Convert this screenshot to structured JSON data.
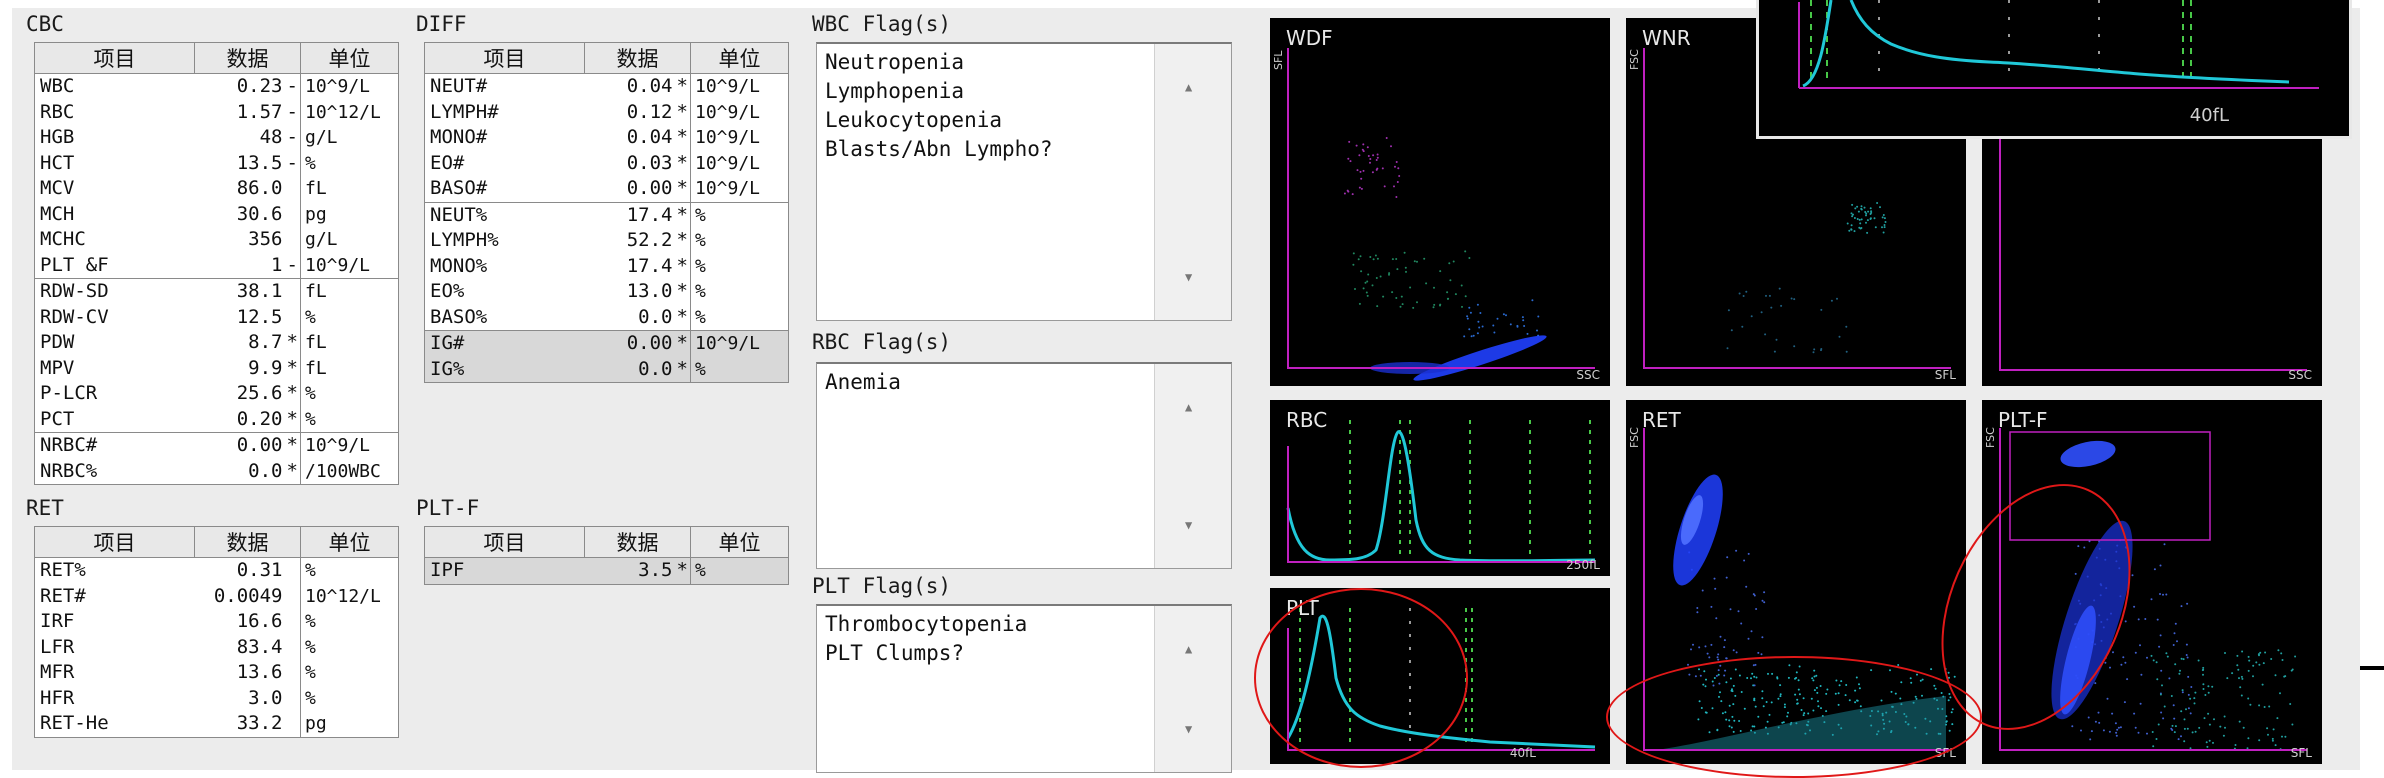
{
  "cbc": {
    "title": "CBC",
    "headers": [
      "项目",
      "数据",
      "单位"
    ],
    "rows": [
      {
        "name": "WBC",
        "value": "0.23",
        "flag": "-",
        "unit": "10^9/L"
      },
      {
        "name": "RBC",
        "value": "1.57",
        "flag": "-",
        "unit": "10^12/L"
      },
      {
        "name": "HGB",
        "value": "48",
        "flag": "-",
        "unit": "g/L"
      },
      {
        "name": "HCT",
        "value": "13.5",
        "flag": "-",
        "unit": "%"
      },
      {
        "name": "MCV",
        "value": "86.0",
        "flag": "",
        "unit": "fL"
      },
      {
        "name": "MCH",
        "value": "30.6",
        "flag": "",
        "unit": "pg"
      },
      {
        "name": "MCHC",
        "value": "356",
        "flag": "",
        "unit": "g/L"
      },
      {
        "name": "PLT &F",
        "value": "1",
        "flag": "-",
        "unit": "10^9/L"
      },
      {
        "name": "RDW-SD",
        "value": "38.1",
        "flag": "",
        "unit": "fL"
      },
      {
        "name": "RDW-CV",
        "value": "12.5",
        "flag": "",
        "unit": "%"
      },
      {
        "name": "PDW",
        "value": "8.7",
        "flag": "*",
        "unit": "fL"
      },
      {
        "name": "MPV",
        "value": "9.9",
        "flag": "*",
        "unit": "fL"
      },
      {
        "name": "P-LCR",
        "value": "25.6",
        "flag": "*",
        "unit": "%"
      },
      {
        "name": "PCT",
        "value": "0.20",
        "flag": "*",
        "unit": "%"
      },
      {
        "name": "NRBC#",
        "value": "0.00",
        "flag": "*",
        "unit": "10^9/L"
      },
      {
        "name": "NRBC%",
        "value": "0.0",
        "flag": "*",
        "unit": "/100WBC"
      }
    ]
  },
  "ret": {
    "title": "RET",
    "headers": [
      "项目",
      "数据",
      "单位"
    ],
    "rows": [
      {
        "name": "RET%",
        "value": "0.31",
        "flag": "",
        "unit": "%"
      },
      {
        "name": "RET#",
        "value": "0.0049",
        "flag": "",
        "unit": "10^12/L"
      },
      {
        "name": "IRF",
        "value": "16.6",
        "flag": "",
        "unit": "%"
      },
      {
        "name": "LFR",
        "value": "83.4",
        "flag": "",
        "unit": "%"
      },
      {
        "name": "MFR",
        "value": "13.6",
        "flag": "",
        "unit": "%"
      },
      {
        "name": "HFR",
        "value": "3.0",
        "flag": "",
        "unit": "%"
      },
      {
        "name": "RET-He",
        "value": "33.2",
        "flag": "",
        "unit": "pg"
      }
    ]
  },
  "diff": {
    "title": "DIFF",
    "headers": [
      "项目",
      "数据",
      "单位"
    ],
    "rows": [
      {
        "name": "NEUT#",
        "value": "0.04",
        "flag": "*",
        "unit": "10^9/L"
      },
      {
        "name": "LYMPH#",
        "value": "0.12",
        "flag": "*",
        "unit": "10^9/L"
      },
      {
        "name": "MONO#",
        "value": "0.04",
        "flag": "*",
        "unit": "10^9/L"
      },
      {
        "name": "EO#",
        "value": "0.03",
        "flag": "*",
        "unit": "10^9/L"
      },
      {
        "name": "BASO#",
        "value": "0.00",
        "flag": "*",
        "unit": "10^9/L"
      },
      {
        "name": "NEUT%",
        "value": "17.4",
        "flag": "*",
        "unit": "%"
      },
      {
        "name": "LYMPH%",
        "value": "52.2",
        "flag": "*",
        "unit": "%"
      },
      {
        "name": "MONO%",
        "value": "17.4",
        "flag": "*",
        "unit": "%"
      },
      {
        "name": "EO%",
        "value": "13.0",
        "flag": "*",
        "unit": "%"
      },
      {
        "name": "BASO%",
        "value": "0.0",
        "flag": "*",
        "unit": "%"
      },
      {
        "name": "IG#",
        "value": "0.00",
        "flag": "*",
        "unit": "10^9/L"
      },
      {
        "name": "IG%",
        "value": "0.0",
        "flag": "*",
        "unit": "%"
      }
    ]
  },
  "pltf": {
    "title": "PLT-F",
    "headers": [
      "项目",
      "数据",
      "单位"
    ],
    "rows": [
      {
        "name": "IPF",
        "value": "3.5",
        "flag": "*",
        "unit": "%"
      }
    ]
  },
  "wbc_flags": {
    "title": "WBC Flag(s)",
    "lines": [
      "Neutropenia",
      "Lymphopenia",
      "Leukocytopenia",
      "Blasts/Abn Lympho?"
    ]
  },
  "rbc_flags": {
    "title": "RBC Flag(s)",
    "lines": [
      "Anemia"
    ]
  },
  "plt_flags": {
    "title": "PLT Flag(s)",
    "lines": [
      "Thrombocytopenia",
      "PLT Clumps?"
    ]
  },
  "scroll": {
    "up": "▲",
    "down": "▼"
  },
  "plots": {
    "wdf": {
      "title": "WDF",
      "xlabel": "SSC",
      "ylabel": "SFL"
    },
    "wnr": {
      "title": "WNR",
      "xlabel": "SFL",
      "ylabel": "FSC"
    },
    "wpc": {
      "xlabel": "SSC"
    },
    "rbc": {
      "title": "RBC",
      "xlabel": "250fL"
    },
    "plt": {
      "title": "PLT",
      "xlabel": "40fL"
    },
    "ret": {
      "title": "RET",
      "xlabel": "SFL",
      "ylabel": "FSC"
    },
    "pltf": {
      "title": "PLT-F",
      "xlabel": "SFL",
      "ylabel": "FSC"
    },
    "zoom": {
      "xlabel": "40fL"
    }
  },
  "colors": {
    "curve": "#20c8d8",
    "axis": "#c020c0",
    "guide": "#48c848",
    "circle": "#e01818"
  }
}
